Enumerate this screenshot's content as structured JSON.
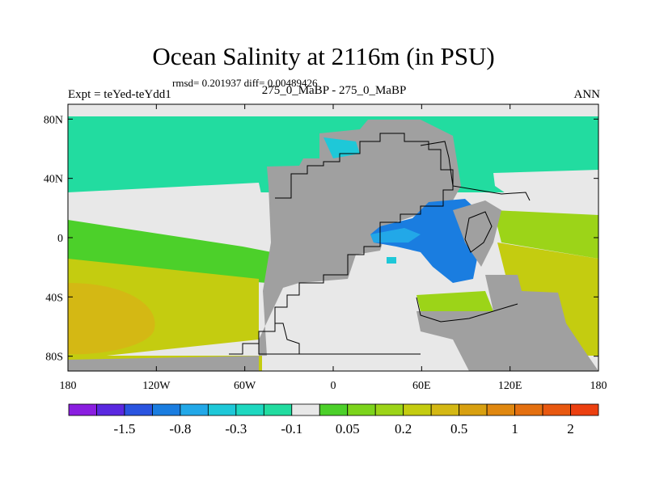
{
  "title": "Ocean Salinity at 2116m (in PSU)",
  "stats_line": "rmsd= 0.201937 diff= 0.00489426",
  "experiment_label": "Expt = teYed-teYdd1",
  "case_label": "275_0_MaBP - 275_0_MaBP",
  "season_label": "ANN",
  "colors": {
    "land": "#a0a0a0",
    "coastline": "#000000",
    "near_zero": "#e8e8e8",
    "arctic_teal": "#22dca0",
    "negative_blue": "#1a7de0",
    "light_blue": "#22a8e8",
    "cyan": "#1ec8d8",
    "green": "#4cd02a",
    "yellow_green": "#9cd418",
    "olive_yellow": "#c4cc10",
    "gold": "#d4b814"
  },
  "map": {
    "projection": "cylindrical equidistant",
    "lon_range": [
      -180,
      180
    ],
    "lat_range": [
      -90,
      90
    ],
    "lat_ticks": [
      {
        "value": 80,
        "label": "80N"
      },
      {
        "value": 40,
        "label": "40N"
      },
      {
        "value": 0,
        "label": "0"
      },
      {
        "value": -40,
        "label": "40S"
      },
      {
        "value": -80,
        "label": "80S"
      }
    ],
    "lon_ticks": [
      {
        "value": -180,
        "label": "180"
      },
      {
        "value": -120,
        "label": "120W"
      },
      {
        "value": -60,
        "label": "60W"
      },
      {
        "value": 0,
        "label": "0"
      },
      {
        "value": 60,
        "label": "60E"
      },
      {
        "value": 120,
        "label": "120E"
      },
      {
        "value": 180,
        "label": "180"
      }
    ]
  },
  "colorbar": {
    "colors": [
      "#8a1ee0",
      "#5a28e0",
      "#2a54e0",
      "#1a7de0",
      "#22a8e8",
      "#1ec8d8",
      "#1ed8c0",
      "#22dca0",
      "#e8e8e8",
      "#4cd02a",
      "#7cd41c",
      "#9cd418",
      "#c4cc10",
      "#d4b814",
      "#d8a010",
      "#e08810",
      "#e47010",
      "#e85810",
      "#ec4010"
    ],
    "labels": [
      {
        "text": "-1.5",
        "boundary": 2
      },
      {
        "text": "-0.8",
        "boundary": 4
      },
      {
        "text": "-0.3",
        "boundary": 6
      },
      {
        "text": "-0.1",
        "boundary": 8
      },
      {
        "text": "0.05",
        "boundary": 10
      },
      {
        "text": "0.2",
        "boundary": 12
      },
      {
        "text": "0.5",
        "boundary": 14
      },
      {
        "text": "1",
        "boundary": 16
      },
      {
        "text": "2",
        "boundary": 18
      }
    ]
  }
}
